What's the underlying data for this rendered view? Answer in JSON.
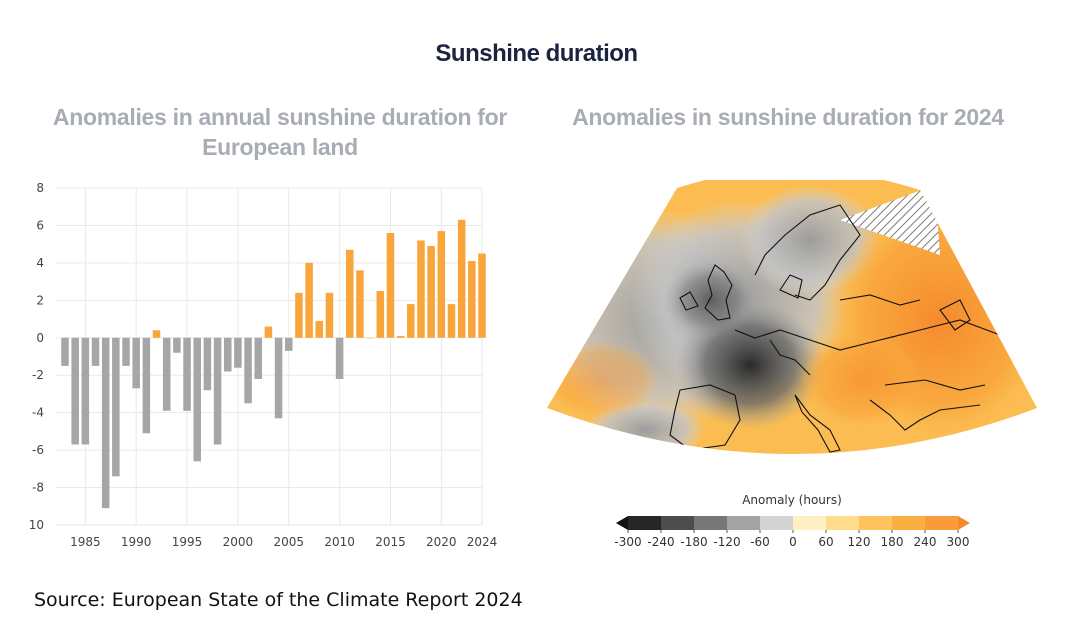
{
  "title": "Sunshine duration",
  "source": "Source: European State of the Climate Report 2024",
  "colors": {
    "negative": "#a6a6a6",
    "positive": "#f8a63c",
    "gridline": "#e9e9e9"
  },
  "chart_data": [
    {
      "type": "bar",
      "title": "Anomalies in annual sunshine duration for European land",
      "xlabel": "",
      "ylabel": "",
      "ylim": [
        -10,
        8
      ],
      "yticks": [
        8,
        6,
        4,
        2,
        0,
        -2,
        -4,
        -6,
        -8,
        10
      ],
      "xticks": [
        1985,
        1990,
        1995,
        2000,
        2005,
        2010,
        2015,
        2020,
        2024
      ],
      "grid": true,
      "categories": [
        1983,
        1984,
        1985,
        1986,
        1987,
        1988,
        1989,
        1990,
        1991,
        1992,
        1993,
        1994,
        1995,
        1996,
        1997,
        1998,
        1999,
        2000,
        2001,
        2002,
        2003,
        2004,
        2005,
        2006,
        2007,
        2008,
        2009,
        2010,
        2011,
        2012,
        2013,
        2014,
        2015,
        2016,
        2017,
        2018,
        2019,
        2020,
        2021,
        2022,
        2023,
        2024
      ],
      "values": [
        -1.5,
        -5.7,
        -5.7,
        -1.5,
        -9.1,
        -7.4,
        -1.5,
        -2.7,
        -5.1,
        0.4,
        -3.9,
        -0.8,
        -3.9,
        -6.6,
        -2.8,
        -5.7,
        -1.8,
        -1.6,
        -3.5,
        -2.2,
        0.6,
        -4.3,
        -0.7,
        2.4,
        4.0,
        0.9,
        2.4,
        -2.2,
        4.7,
        3.6,
        0.0,
        2.5,
        5.6,
        0.1,
        1.8,
        5.2,
        4.9,
        5.7,
        1.8,
        6.3,
        4.1,
        4.5
      ]
    },
    {
      "type": "heatmap",
      "title": "Anomalies in sunshine duration for 2024",
      "colorbar": {
        "label": "Anomaly (hours)",
        "ticks": [
          "-300",
          "-240",
          "-180",
          "-120",
          "-60",
          "0",
          "60",
          "120",
          "180",
          "240",
          "300"
        ],
        "colors": [
          "#262626",
          "#4d4d4d",
          "#777777",
          "#a3a3a3",
          "#d3d3d3",
          "#fff0c4",
          "#fedc8c",
          "#fcc35f",
          "#fab040",
          "#f99b38"
        ]
      }
    }
  ]
}
